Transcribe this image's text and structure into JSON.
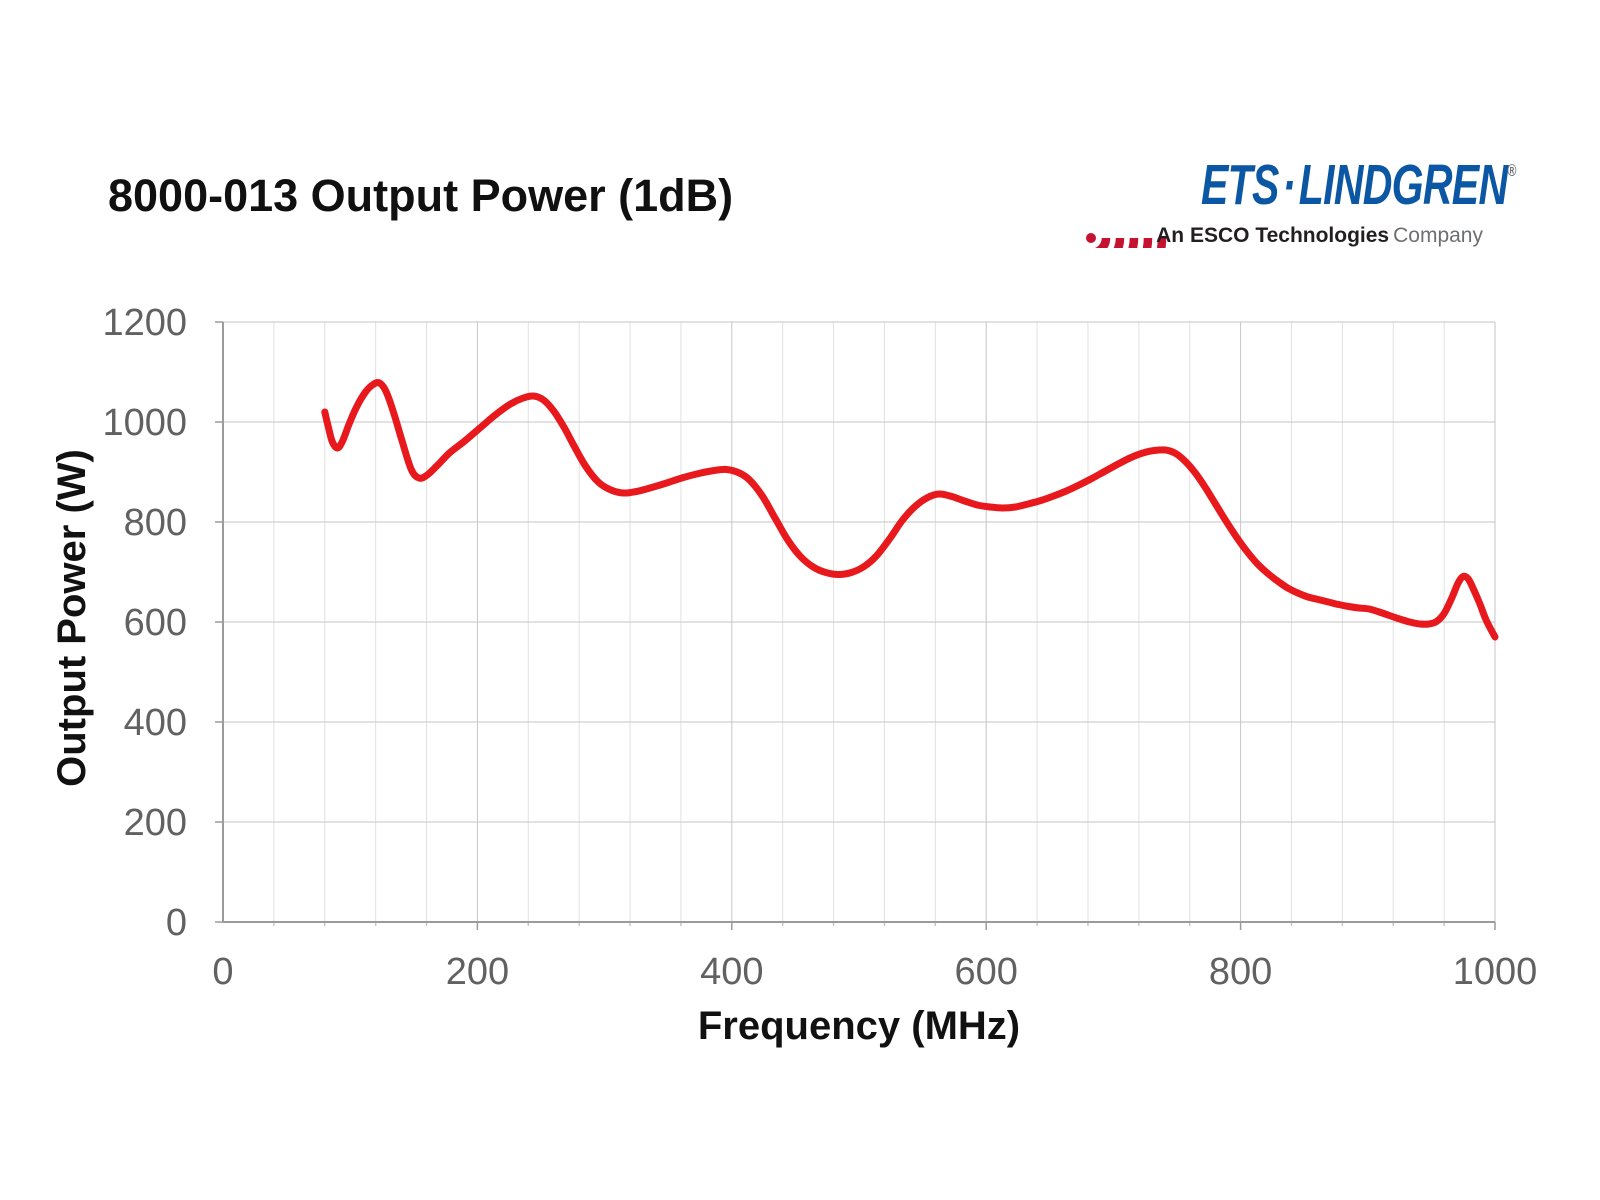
{
  "header": {
    "title": "8000-013 Output Power (1dB)"
  },
  "logo": {
    "brand_ets": "ETS",
    "separator": "·",
    "brand_lindgren": "LINDGREN",
    "registered_mark": "®",
    "tagline_bold": "An ESCO Technologies",
    "tagline_regular": "Company",
    "colors": {
      "arc_red": "#C41230",
      "brand_blue": "#0B57A4",
      "tagline_dark": "#231f20",
      "tagline_gray": "#6d6e71"
    }
  },
  "chart_data": {
    "type": "line",
    "title": "8000-013 Output Power (1dB)",
    "xlabel": "Frequency (MHz)",
    "ylabel": "Output Power (W)",
    "xlim": [
      0,
      1000
    ],
    "ylim": [
      0,
      1200
    ],
    "x_ticks": [
      0,
      200,
      400,
      600,
      800,
      1000
    ],
    "y_ticks": [
      0,
      200,
      400,
      600,
      800,
      1000,
      1200
    ],
    "x_minor_step": 40,
    "grid": true,
    "legend": false,
    "style": {
      "line_color": "#e8191d",
      "grid_minor": "#e1e1e1",
      "grid_major": "#c6c6c6",
      "axis": "#9b9b9b",
      "tick_label": "#616161"
    },
    "series": [
      {
        "name": "Output Power (W)",
        "color": "#e8191d",
        "points": [
          [
            80,
            1020
          ],
          [
            83,
            988
          ],
          [
            86,
            960
          ],
          [
            90,
            948
          ],
          [
            94,
            962
          ],
          [
            99,
            995
          ],
          [
            105,
            1030
          ],
          [
            112,
            1060
          ],
          [
            118,
            1075
          ],
          [
            123,
            1078
          ],
          [
            128,
            1062
          ],
          [
            134,
            1020
          ],
          [
            141,
            960
          ],
          [
            148,
            905
          ],
          [
            154,
            888
          ],
          [
            160,
            893
          ],
          [
            168,
            912
          ],
          [
            178,
            938
          ],
          [
            190,
            962
          ],
          [
            202,
            988
          ],
          [
            214,
            1014
          ],
          [
            226,
            1036
          ],
          [
            236,
            1048
          ],
          [
            244,
            1052
          ],
          [
            252,
            1044
          ],
          [
            260,
            1022
          ],
          [
            268,
            990
          ],
          [
            276,
            952
          ],
          [
            285,
            912
          ],
          [
            295,
            880
          ],
          [
            305,
            864
          ],
          [
            315,
            858
          ],
          [
            325,
            861
          ],
          [
            337,
            869
          ],
          [
            350,
            879
          ],
          [
            362,
            889
          ],
          [
            374,
            897
          ],
          [
            386,
            903
          ],
          [
            396,
            905
          ],
          [
            406,
            898
          ],
          [
            414,
            884
          ],
          [
            424,
            852
          ],
          [
            434,
            808
          ],
          [
            444,
            764
          ],
          [
            454,
            731
          ],
          [
            464,
            710
          ],
          [
            474,
            699
          ],
          [
            484,
            695
          ],
          [
            494,
            699
          ],
          [
            504,
            711
          ],
          [
            514,
            733
          ],
          [
            524,
            766
          ],
          [
            534,
            803
          ],
          [
            544,
            831
          ],
          [
            554,
            849
          ],
          [
            563,
            856
          ],
          [
            573,
            851
          ],
          [
            583,
            842
          ],
          [
            593,
            834
          ],
          [
            603,
            830
          ],
          [
            613,
            828
          ],
          [
            623,
            830
          ],
          [
            633,
            836
          ],
          [
            643,
            843
          ],
          [
            653,
            852
          ],
          [
            663,
            862
          ],
          [
            673,
            874
          ],
          [
            683,
            887
          ],
          [
            693,
            901
          ],
          [
            703,
            915
          ],
          [
            713,
            928
          ],
          [
            723,
            938
          ],
          [
            732,
            943
          ],
          [
            741,
            944
          ],
          [
            749,
            937
          ],
          [
            757,
            920
          ],
          [
            765,
            896
          ],
          [
            773,
            866
          ],
          [
            781,
            833
          ],
          [
            789,
            800
          ],
          [
            797,
            769
          ],
          [
            805,
            741
          ],
          [
            813,
            717
          ],
          [
            821,
            698
          ],
          [
            829,
            682
          ],
          [
            837,
            668
          ],
          [
            845,
            658
          ],
          [
            853,
            650
          ],
          [
            861,
            645
          ],
          [
            869,
            640
          ],
          [
            877,
            635
          ],
          [
            885,
            631
          ],
          [
            893,
            628
          ],
          [
            901,
            626
          ],
          [
            909,
            620
          ],
          [
            917,
            613
          ],
          [
            925,
            606
          ],
          [
            933,
            600
          ],
          [
            941,
            596
          ],
          [
            948,
            596
          ],
          [
            954,
            601
          ],
          [
            960,
            617
          ],
          [
            966,
            648
          ],
          [
            971,
            678
          ],
          [
            975,
            691
          ],
          [
            979,
            686
          ],
          [
            983,
            666
          ],
          [
            988,
            637
          ],
          [
            993,
            604
          ],
          [
            1000,
            570
          ]
        ]
      }
    ]
  }
}
